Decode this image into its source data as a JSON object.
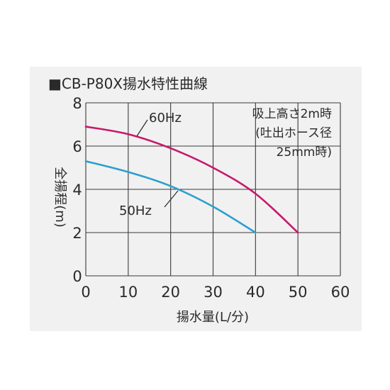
{
  "chart_data": {
    "type": "line",
    "title": "■CB-P80X揚水特性曲線",
    "xlabel": "揚水量(L/分)",
    "ylabel": "全揚程(m)",
    "xlim": [
      0,
      60
    ],
    "ylim": [
      0,
      8
    ],
    "x_ticks": [
      "0",
      "10",
      "20",
      "30",
      "40",
      "50",
      "60"
    ],
    "y_ticks": [
      "0",
      "2",
      "4",
      "6",
      "8"
    ],
    "grid": true,
    "annotation": [
      "吸上高さ2m時",
      "(吐出ホース径",
      "25mm時)"
    ],
    "series": [
      {
        "name": "60Hz",
        "color": "#c8186b",
        "points": [
          [
            0,
            6.9
          ],
          [
            10,
            6.55
          ],
          [
            20,
            5.9
          ],
          [
            30,
            5.0
          ],
          [
            40,
            3.8
          ],
          [
            50,
            2.0
          ]
        ]
      },
      {
        "name": "50Hz",
        "color": "#2a9fd0",
        "points": [
          [
            0,
            5.3
          ],
          [
            10,
            4.8
          ],
          [
            20,
            4.15
          ],
          [
            30,
            3.2
          ],
          [
            40,
            2.0
          ]
        ]
      }
    ]
  }
}
